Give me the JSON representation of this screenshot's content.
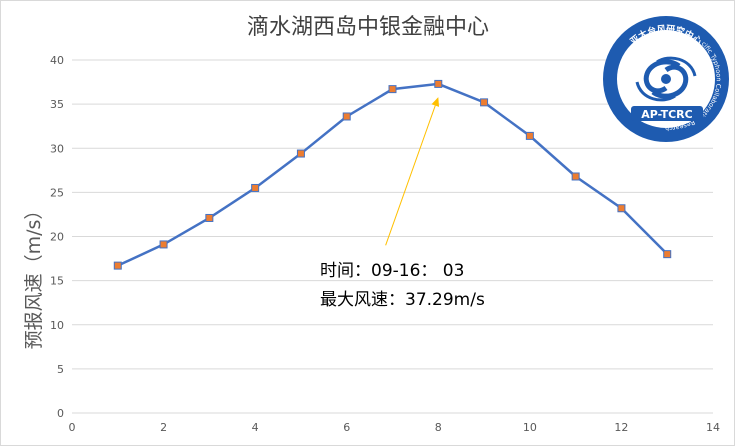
{
  "chart_data": {
    "type": "line",
    "title": "滴水湖西岛中银金融中心",
    "xlabel": "",
    "ylabel": "预报风速（m/s）",
    "xlim": [
      0,
      14
    ],
    "ylim": [
      0,
      40
    ],
    "xticks": [
      0,
      2,
      4,
      6,
      8,
      10,
      12,
      14
    ],
    "yticks": [
      0,
      5,
      10,
      15,
      20,
      25,
      30,
      35,
      40
    ],
    "grid": "horizontal",
    "legend": "none",
    "series": [
      {
        "color": "#4472c4",
        "marker_color": "#ed7d31",
        "x": [
          1,
          2,
          3,
          4,
          5,
          6,
          7,
          8,
          9,
          10,
          11,
          12,
          13
        ],
        "y": [
          16.7,
          19.1,
          22.1,
          25.5,
          29.4,
          33.6,
          36.7,
          37.29,
          35.2,
          31.4,
          26.8,
          23.2,
          18.0
        ]
      }
    ],
    "annotation": {
      "line1": "时间：09-16： 03",
      "line2": "最大风速：37.29m/s",
      "arrow_to": {
        "x": 8,
        "y": 35.8
      },
      "arrow_from": {
        "x": 6.85,
        "y": 19
      },
      "arrow_color": "#ffc000"
    }
  },
  "logo": {
    "org": "AP-TCRC",
    "ring_cn": "亚太台风研究中心",
    "ring_en": "Asia-Pacific Typhoon Collaborative Research Center",
    "color": "#1e5bb0"
  }
}
